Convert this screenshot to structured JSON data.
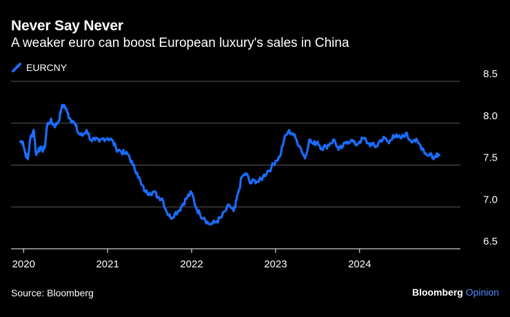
{
  "title": "Never Say Never",
  "subtitle": "A weaker euro can boost European luxury's sales in China",
  "source": "Source: Bloomberg",
  "brand": {
    "name": "Bloomberg",
    "suffix": "Opinion"
  },
  "colors": {
    "line": "#1a6dff",
    "grid": "#5a5a5a",
    "axis": "#ffffff",
    "background": "#000000"
  },
  "chart_data": {
    "type": "line",
    "title": "Never Say Never",
    "subtitle": "A weaker euro can boost European luxury's sales in China",
    "xlabel": "",
    "ylabel": "",
    "xlim": [
      2019.85,
      2025.2
    ],
    "ylim": [
      6.5,
      8.5
    ],
    "yticks": [
      "8.5",
      "8.0",
      "7.5",
      "7.0",
      "6.5"
    ],
    "xticks": [
      "2020",
      "2021",
      "2022",
      "2023",
      "2024"
    ],
    "grid": true,
    "legend": "top-left",
    "series": [
      {
        "name": "EURCNY",
        "x": [
          2019.96,
          2019.99,
          2020.02,
          2020.05,
          2020.08,
          2020.12,
          2020.15,
          2020.18,
          2020.22,
          2020.25,
          2020.28,
          2020.32,
          2020.35,
          2020.38,
          2020.42,
          2020.45,
          2020.48,
          2020.52,
          2020.55,
          2020.58,
          2020.62,
          2020.65,
          2020.7,
          2020.75,
          2020.8,
          2020.85,
          2020.9,
          2020.95,
          2021.0,
          2021.05,
          2021.1,
          2021.15,
          2021.2,
          2021.25,
          2021.3,
          2021.35,
          2021.4,
          2021.45,
          2021.5,
          2021.55,
          2021.6,
          2021.65,
          2021.7,
          2021.75,
          2021.8,
          2021.85,
          2021.9,
          2021.95,
          2022.0,
          2022.05,
          2022.1,
          2022.15,
          2022.2,
          2022.25,
          2022.3,
          2022.35,
          2022.4,
          2022.45,
          2022.5,
          2022.52,
          2022.55,
          2022.6,
          2022.65,
          2022.7,
          2022.75,
          2022.8,
          2022.85,
          2022.9,
          2022.95,
          2023.0,
          2023.05,
          2023.1,
          2023.15,
          2023.2,
          2023.25,
          2023.3,
          2023.35,
          2023.4,
          2023.45,
          2023.5,
          2023.55,
          2023.6,
          2023.65,
          2023.7,
          2023.75,
          2023.8,
          2023.85,
          2023.9,
          2023.95,
          2024.0,
          2024.05,
          2024.1,
          2024.15,
          2024.2,
          2024.25,
          2024.3,
          2024.35,
          2024.4,
          2024.45,
          2024.5,
          2024.55,
          2024.6,
          2024.65,
          2024.7,
          2024.75,
          2024.8,
          2024.85,
          2024.88,
          2024.92,
          2024.95
        ],
        "values": [
          7.78,
          7.78,
          7.64,
          7.57,
          7.82,
          7.92,
          7.62,
          7.7,
          7.68,
          7.7,
          7.98,
          8.03,
          7.99,
          7.97,
          8.03,
          8.18,
          8.22,
          8.13,
          8.06,
          8.03,
          7.97,
          7.88,
          7.85,
          7.92,
          7.8,
          7.8,
          7.78,
          7.82,
          7.82,
          7.8,
          7.7,
          7.67,
          7.64,
          7.62,
          7.5,
          7.41,
          7.27,
          7.18,
          7.17,
          7.18,
          7.12,
          7.1,
          6.95,
          6.87,
          6.92,
          6.96,
          7.04,
          7.12,
          7.17,
          7.0,
          6.91,
          6.87,
          6.8,
          6.8,
          6.83,
          6.87,
          6.95,
          7.02,
          6.95,
          7.0,
          7.15,
          7.36,
          7.4,
          7.28,
          7.32,
          7.3,
          7.36,
          7.42,
          7.47,
          7.55,
          7.6,
          7.8,
          7.9,
          7.88,
          7.8,
          7.7,
          7.58,
          7.8,
          7.75,
          7.78,
          7.7,
          7.72,
          7.76,
          7.8,
          7.68,
          7.72,
          7.78,
          7.8,
          7.74,
          7.78,
          7.82,
          7.76,
          7.74,
          7.72,
          7.8,
          7.82,
          7.76,
          7.86,
          7.83,
          7.82,
          7.88,
          7.8,
          7.8,
          7.76,
          7.7,
          7.62,
          7.64,
          7.57,
          7.64,
          7.62
        ]
      }
    ]
  }
}
